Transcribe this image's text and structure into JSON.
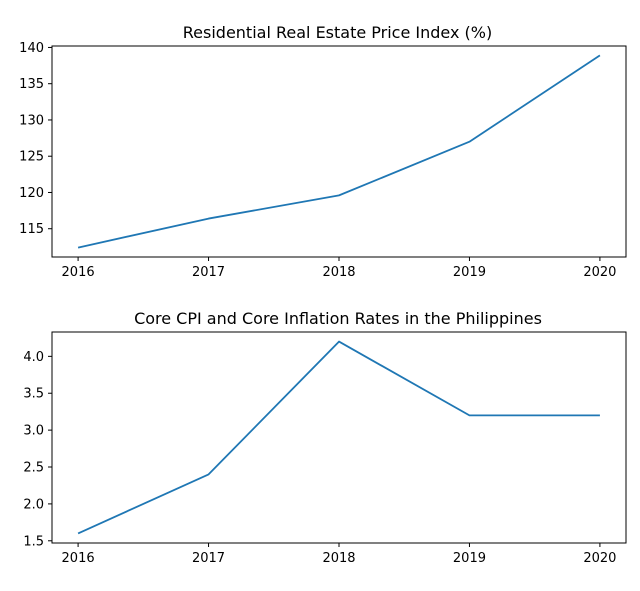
{
  "chart_data": [
    {
      "type": "line",
      "title": "Residential Real Estate Price Index (%)",
      "xlabel": "",
      "ylabel": "",
      "x": [
        2016,
        2017,
        2018,
        2019,
        2020
      ],
      "series": [
        {
          "values": [
            112.4,
            116.4,
            119.6,
            127.0,
            138.9
          ],
          "color": "#1f77b4"
        }
      ],
      "x_ticks": [
        "2016",
        "2017",
        "2018",
        "2019",
        "2020"
      ],
      "y_ticks": [
        "115",
        "120",
        "125",
        "130",
        "135",
        "140"
      ],
      "xlim": [
        2015.8,
        2020.2
      ],
      "ylim": [
        111.1,
        140.2
      ],
      "grid": false,
      "legend": "none"
    },
    {
      "type": "line",
      "title": "Core CPI and Core Inflation Rates in the Philippines",
      "xlabel": "",
      "ylabel": "",
      "x": [
        2016,
        2017,
        2018,
        2019,
        2020
      ],
      "series": [
        {
          "values": [
            1.6,
            2.4,
            4.2,
            3.2,
            3.2
          ],
          "color": "#1f77b4"
        }
      ],
      "x_ticks": [
        "2016",
        "2017",
        "2018",
        "2019",
        "2020"
      ],
      "y_ticks": [
        "1.5",
        "2.0",
        "2.5",
        "3.0",
        "3.5",
        "4.0"
      ],
      "xlim": [
        2015.8,
        2020.2
      ],
      "ylim": [
        1.47,
        4.33
      ],
      "grid": false,
      "legend": "none"
    }
  ]
}
